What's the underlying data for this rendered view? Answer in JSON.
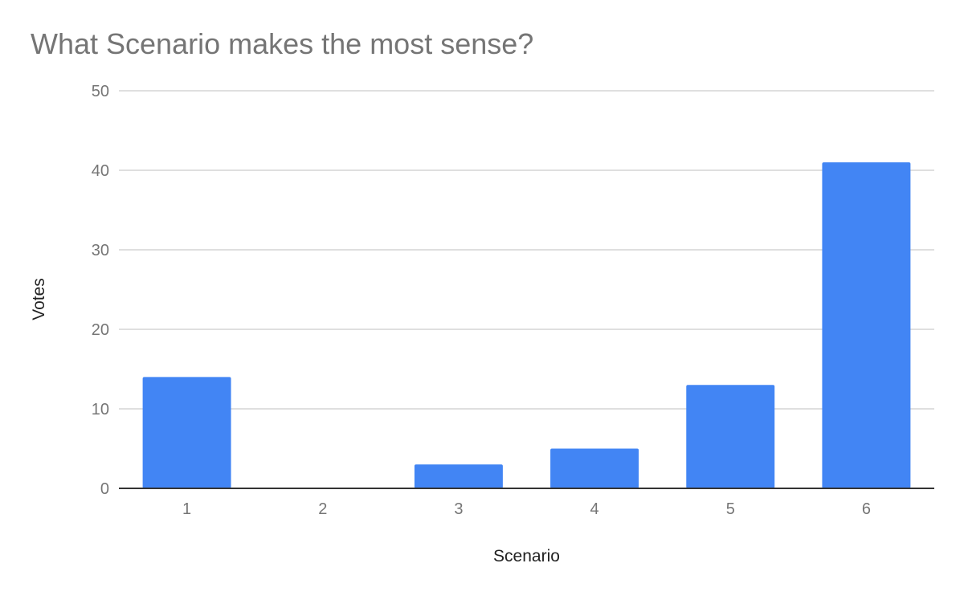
{
  "chart_data": {
    "type": "bar",
    "title": "What Scenario makes the most sense?",
    "xlabel": "Scenario",
    "ylabel": "Votes",
    "categories": [
      "1",
      "2",
      "3",
      "4",
      "5",
      "6"
    ],
    "values": [
      14,
      0,
      3,
      5,
      13,
      41
    ],
    "ylim": [
      0,
      50
    ],
    "yticks": [
      0,
      10,
      20,
      30,
      40,
      50
    ],
    "grid": true,
    "legend": "none",
    "colors": {
      "bar": "#4285F4",
      "grid": "#cccccc",
      "axis": "#333333",
      "tick_text": "#757575",
      "title_text": "#757575",
      "label_text": "#222222"
    }
  }
}
